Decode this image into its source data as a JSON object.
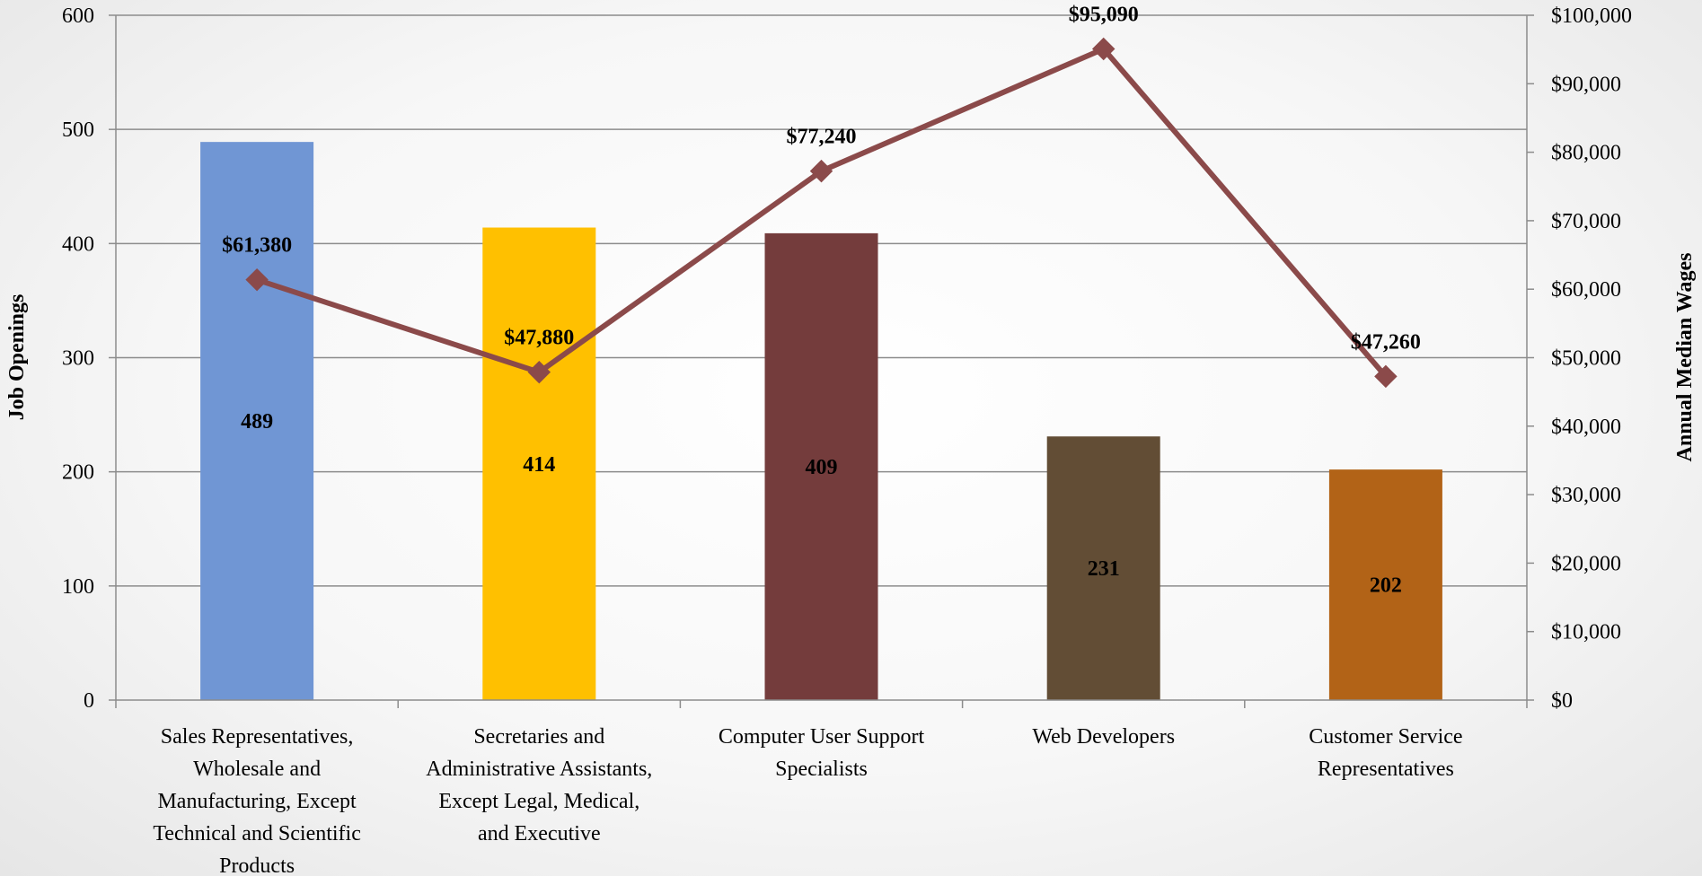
{
  "chart_data": {
    "type": "bar",
    "categories": [
      [
        "Sales Representatives,",
        "Wholesale and",
        "Manufacturing, Except",
        "Technical and Scientific",
        "Products"
      ],
      [
        "Secretaries and",
        "Administrative Assistants,",
        "Except Legal, Medical,",
        "and Executive"
      ],
      [
        "Computer User Support",
        "Specialists"
      ],
      [
        "Web Developers"
      ],
      [
        "Customer Service",
        "Representatives"
      ]
    ],
    "series": [
      {
        "kind": "bar",
        "axis": "left",
        "values": [
          489,
          414,
          409,
          231,
          202
        ],
        "labels": [
          "489",
          "414",
          "409",
          "231",
          "202"
        ],
        "colors": [
          "#7096d4",
          "#ffc000",
          "#743c3c",
          "#624d35",
          "#b26317"
        ]
      },
      {
        "kind": "line",
        "axis": "right",
        "values": [
          61380,
          47880,
          77240,
          95090,
          47260
        ],
        "labels": [
          "$61,380",
          "$47,880",
          "$77,240",
          "$95,090",
          "$47,260"
        ],
        "color": "#8b4a4a"
      }
    ],
    "ylabel": "Job Openings",
    "y2label": "Annual Median Wages",
    "ylim": [
      0,
      600
    ],
    "y2lim": [
      0,
      100000
    ],
    "yticks": [
      "0",
      "100",
      "200",
      "300",
      "400",
      "500",
      "600"
    ],
    "y2ticks": [
      "$0",
      "$10,000",
      "$20,000",
      "$30,000",
      "$40,000",
      "$50,000",
      "$60,000",
      "$70,000",
      "$80,000",
      "$90,000",
      "$100,000"
    ],
    "grid": true,
    "legend": "none"
  }
}
